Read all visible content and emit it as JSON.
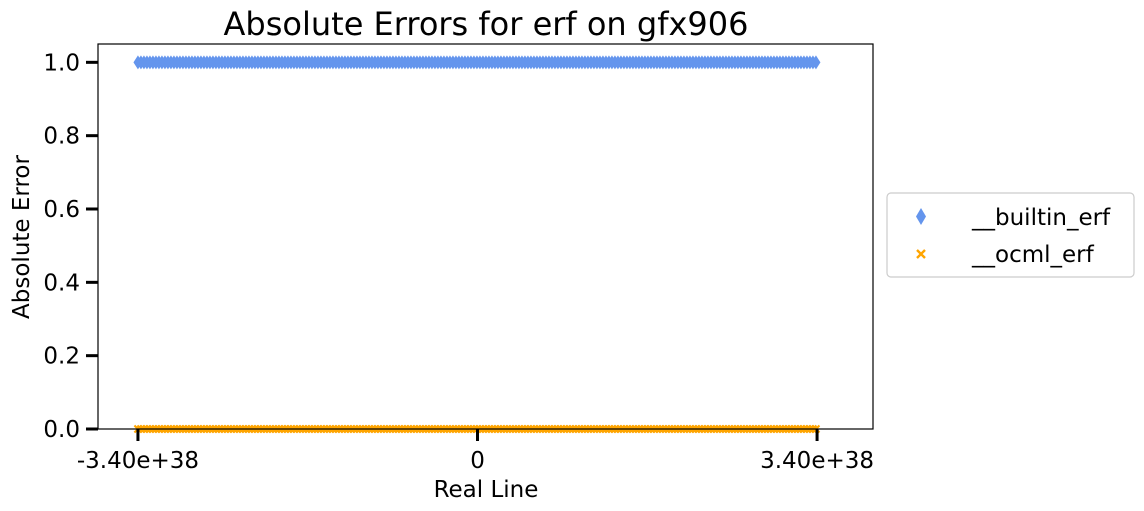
{
  "chart_data": {
    "type": "scatter",
    "title": "Absolute Errors for erf on gfx906",
    "xlabel": "Real Line",
    "ylabel": "Absolute Error",
    "xlim": [
      -3.8e+38,
      3.96e+38
    ],
    "ylim": [
      0,
      1.05
    ],
    "x_ticks": [
      {
        "value": -3.4e+38,
        "label": "-3.40e+38"
      },
      {
        "value": 0,
        "label": "0"
      },
      {
        "value": 3.4e+38,
        "label": "3.40e+38"
      }
    ],
    "y_ticks": [
      {
        "value": 0.0,
        "label": "0.0"
      },
      {
        "value": 0.2,
        "label": "0.2"
      },
      {
        "value": 0.4,
        "label": "0.4"
      },
      {
        "value": 0.6,
        "label": "0.6"
      },
      {
        "value": 0.8,
        "label": "0.8"
      },
      {
        "value": 1.0,
        "label": "1.0"
      }
    ],
    "grid": false,
    "legend_position": "right",
    "series": [
      {
        "name": "__builtin_erf",
        "marker": "diamond",
        "color": "#6495ED",
        "x_range": [
          -3.4e+38,
          3.4e+38
        ],
        "y": 1.0
      },
      {
        "name": "__ocml_erf",
        "marker": "x",
        "color": "#FFA500",
        "x_range": [
          -3.4e+38,
          3.4e+38
        ],
        "y": 0.0
      }
    ]
  }
}
